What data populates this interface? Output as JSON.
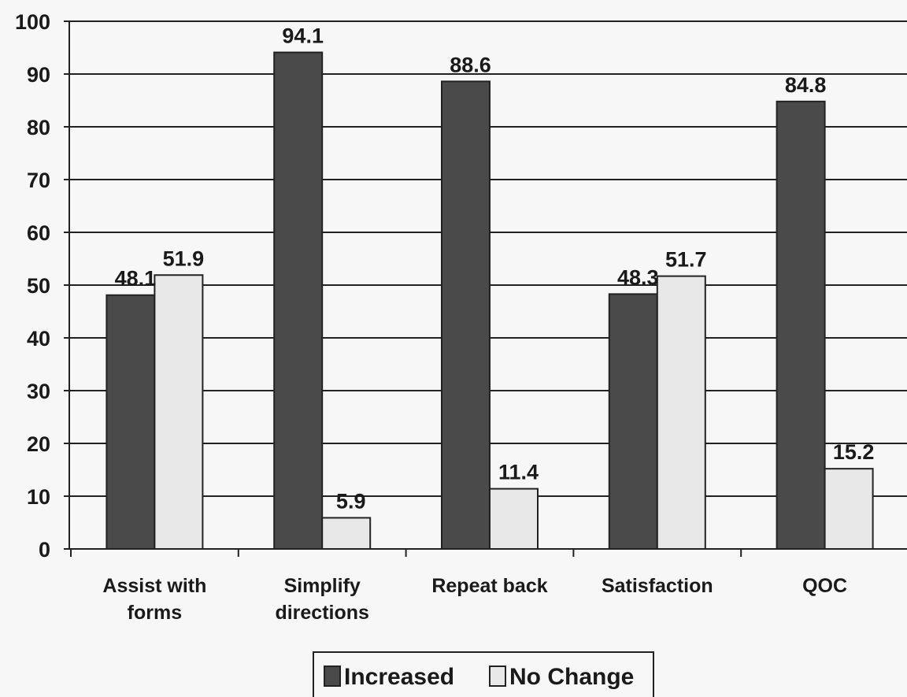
{
  "chart_data": {
    "type": "bar",
    "categories": [
      [
        "Assist with",
        "forms"
      ],
      [
        "Simplify",
        "directions"
      ],
      [
        "Repeat back"
      ],
      [
        "Satisfaction"
      ],
      [
        "QOC"
      ]
    ],
    "series": [
      {
        "name": "Increased",
        "values": [
          48.1,
          94.1,
          88.6,
          48.3,
          84.8
        ],
        "labels": [
          "48.1",
          "94.1",
          "88.6",
          "48.3",
          "84.8"
        ],
        "color": "#4a4a4a"
      },
      {
        "name": "No Change",
        "values": [
          51.9,
          5.9,
          11.4,
          51.7,
          15.2
        ],
        "labels": [
          "51.9",
          "5.9",
          "11.4",
          "51.7",
          "15.2"
        ],
        "color": "#e8e8e8"
      }
    ],
    "ylim": [
      0,
      100
    ],
    "yticks": [
      "0",
      "10",
      "20",
      "30",
      "40",
      "50",
      "60",
      "70",
      "80",
      "90",
      "100"
    ],
    "grid": true,
    "legend_position": "bottom",
    "title": "",
    "xlabel": "",
    "ylabel": ""
  }
}
